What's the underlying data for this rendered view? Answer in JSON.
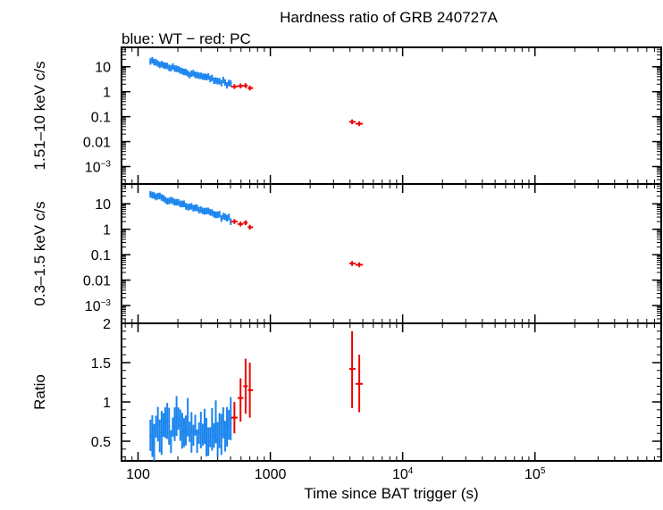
{
  "title": "Hardness ratio of GRB 240727A",
  "subtitle": "blue: WT − red: PC",
  "xlabel": "Time since BAT trigger (s)",
  "colors": {
    "wt": "#1a84ee",
    "pc": "#ee0000",
    "axis": "#000000"
  },
  "chart_data": {
    "type": "scatter",
    "x_scale": "log",
    "xlim": [
      75,
      900000
    ],
    "x_ticks": [
      {
        "value": 100,
        "label": "100"
      },
      {
        "value": 1000,
        "label": "1000"
      },
      {
        "value": 10000,
        "label": "10",
        "exp": "4"
      },
      {
        "value": 100000,
        "label": "10",
        "exp": "5"
      }
    ],
    "panels": [
      {
        "id": "hard",
        "ylabel": "1.51–10 keV c/s",
        "y_scale": "log",
        "ylim": [
          0.0002,
          60
        ],
        "y_ticks": [
          {
            "value": 10,
            "label": "10"
          },
          {
            "value": 1,
            "label": "1"
          },
          {
            "value": 0.1,
            "label": "0.1"
          },
          {
            "value": 0.01,
            "label": "0.01"
          },
          {
            "value": 0.001,
            "label": "10",
            "exp": "−3"
          }
        ],
        "series": [
          {
            "mode": "WT",
            "color_key": "wt",
            "style": "noisy",
            "x_start": 122,
            "x_end": 510,
            "n": 44,
            "y_start": 16,
            "y_end": 1.9,
            "scatter_dex": 0.08
          },
          {
            "mode": "PC",
            "color_key": "pc",
            "style": "points",
            "points": [
              {
                "x": 535,
                "xlo": 505,
                "xhi": 565,
                "y": 1.6
              },
              {
                "x": 595,
                "xlo": 565,
                "xhi": 625,
                "y": 1.7
              },
              {
                "x": 650,
                "xlo": 625,
                "xhi": 675,
                "y": 1.75
              },
              {
                "x": 700,
                "xlo": 675,
                "xhi": 740,
                "y": 1.4
              },
              {
                "x": 4150,
                "xlo": 3950,
                "xhi": 4400,
                "y": 0.062
              },
              {
                "x": 4700,
                "xlo": 4400,
                "xhi": 5000,
                "y": 0.052
              }
            ]
          }
        ]
      },
      {
        "id": "soft",
        "ylabel": "0.3–1.5 keV c/s",
        "y_scale": "log",
        "ylim": [
          0.0002,
          60
        ],
        "y_ticks": [
          {
            "value": 10,
            "label": "10"
          },
          {
            "value": 1,
            "label": "1"
          },
          {
            "value": 0.1,
            "label": "0.1"
          },
          {
            "value": 0.01,
            "label": "0.01"
          },
          {
            "value": 0.001,
            "label": "10",
            "exp": "−3"
          }
        ],
        "series": [
          {
            "mode": "WT",
            "color_key": "wt",
            "style": "noisy",
            "x_start": 122,
            "x_end": 510,
            "n": 44,
            "y_start": 24,
            "y_end": 2.4,
            "scatter_dex": 0.07
          },
          {
            "mode": "PC",
            "color_key": "pc",
            "style": "points",
            "points": [
              {
                "x": 535,
                "xlo": 505,
                "xhi": 565,
                "y": 2.0
              },
              {
                "x": 595,
                "xlo": 565,
                "xhi": 625,
                "y": 1.6
              },
              {
                "x": 650,
                "xlo": 625,
                "xhi": 675,
                "y": 1.8
              },
              {
                "x": 700,
                "xlo": 675,
                "xhi": 740,
                "y": 1.2
              },
              {
                "x": 4150,
                "xlo": 3950,
                "xhi": 4400,
                "y": 0.045
              },
              {
                "x": 4700,
                "xlo": 4400,
                "xhi": 5000,
                "y": 0.04
              }
            ]
          }
        ]
      },
      {
        "id": "ratio",
        "ylabel": "Ratio",
        "y_scale": "linear",
        "ylim": [
          0.25,
          2.0
        ],
        "y_ticks": [
          {
            "value": 0.5,
            "label": "0.5"
          },
          {
            "value": 1,
            "label": "1"
          },
          {
            "value": 1.5,
            "label": "1.5"
          },
          {
            "value": 2,
            "label": "2"
          }
        ],
        "series": [
          {
            "mode": "WT",
            "color_key": "wt",
            "style": "noisy_flat",
            "x_start": 122,
            "x_end": 510,
            "n": 44,
            "y_mean": 0.65,
            "scatter": 0.15,
            "err": 0.2
          },
          {
            "mode": "PC",
            "color_key": "pc",
            "style": "points",
            "points": [
              {
                "x": 535,
                "xlo": 505,
                "xhi": 565,
                "y": 0.8,
                "ylo": 0.6,
                "yhi": 1.0
              },
              {
                "x": 595,
                "xlo": 565,
                "xhi": 625,
                "y": 1.05,
                "ylo": 0.75,
                "yhi": 1.3
              },
              {
                "x": 650,
                "xlo": 625,
                "xhi": 675,
                "y": 1.2,
                "ylo": 0.85,
                "yhi": 1.55
              },
              {
                "x": 700,
                "xlo": 675,
                "xhi": 740,
                "y": 1.15,
                "ylo": 0.8,
                "yhi": 1.5
              },
              {
                "x": 4150,
                "xlo": 3950,
                "xhi": 4400,
                "y": 1.42,
                "ylo": 0.92,
                "yhi": 1.9
              },
              {
                "x": 4700,
                "xlo": 4400,
                "xhi": 5000,
                "y": 1.23,
                "ylo": 0.87,
                "yhi": 1.6
              }
            ]
          }
        ]
      }
    ]
  }
}
